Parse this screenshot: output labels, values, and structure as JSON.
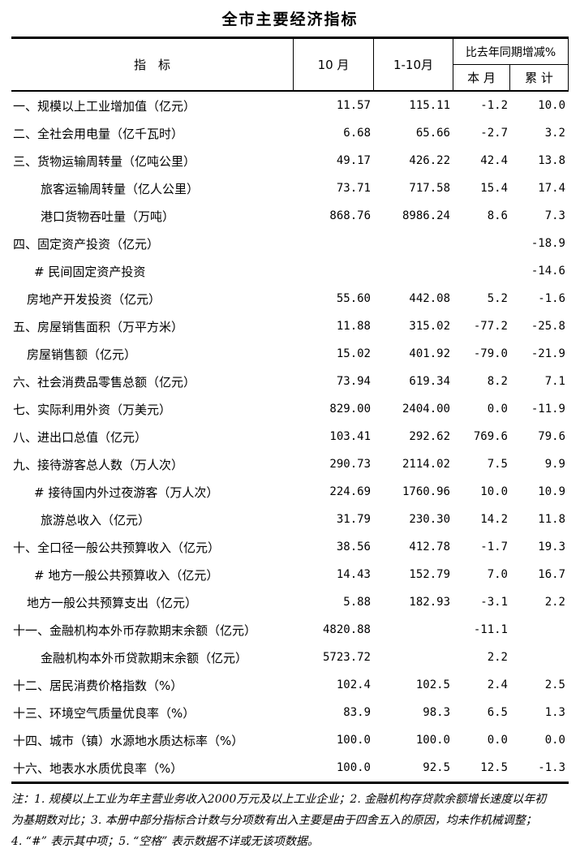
{
  "title": "全市主要经济指标",
  "colors": {
    "background": "#ffffff",
    "text": "#000000",
    "border": "#000000"
  },
  "table": {
    "header": {
      "indicator": "指　标",
      "month": "10 月",
      "cumulative": "1-10月",
      "yoy_group": "比去年同期增减%",
      "yoy_month": "本 月",
      "yoy_cumulative": "累 计"
    },
    "rows": [
      {
        "label": "一、规模以上工业增加值（亿元）",
        "indent": 0,
        "month": "11.57",
        "cum": "115.11",
        "yoy_month": "-1.2",
        "yoy_cum": "10.0"
      },
      {
        "label": "二、全社会用电量（亿千瓦时）",
        "indent": 0,
        "month": "6.68",
        "cum": "65.66",
        "yoy_month": "-2.7",
        "yoy_cum": "3.2"
      },
      {
        "label": "三、货物运输周转量（亿吨公里）",
        "indent": 0,
        "month": "49.17",
        "cum": "426.22",
        "yoy_month": "42.4",
        "yoy_cum": "13.8"
      },
      {
        "label": "旅客运输周转量（亿人公里）",
        "indent": 3,
        "month": "73.71",
        "cum": "717.58",
        "yoy_month": "15.4",
        "yoy_cum": "17.4"
      },
      {
        "label": "港口货物吞吐量（万吨）",
        "indent": 3,
        "month": "868.76",
        "cum": "8986.24",
        "yoy_month": "8.6",
        "yoy_cum": "7.3"
      },
      {
        "label": "四、固定资产投资（亿元）",
        "indent": 0,
        "month": "",
        "cum": "",
        "yoy_month": "",
        "yoy_cum": "-18.9"
      },
      {
        "label": "# 民间固定资产投资",
        "indent": 2,
        "month": "",
        "cum": "",
        "yoy_month": "",
        "yoy_cum": "-14.6"
      },
      {
        "label": "房地产开发投资（亿元）",
        "indent": 1,
        "month": "55.60",
        "cum": "442.08",
        "yoy_month": "5.2",
        "yoy_cum": "-1.6"
      },
      {
        "label": "五、房屋销售面积（万平方米）",
        "indent": 0,
        "month": "11.88",
        "cum": "315.02",
        "yoy_month": "-77.2",
        "yoy_cum": "-25.8"
      },
      {
        "label": "房屋销售额（亿元）",
        "indent": 1,
        "month": "15.02",
        "cum": "401.92",
        "yoy_month": "-79.0",
        "yoy_cum": "-21.9"
      },
      {
        "label": "六、社会消费品零售总额（亿元）",
        "indent": 0,
        "month": "73.94",
        "cum": "619.34",
        "yoy_month": "8.2",
        "yoy_cum": "7.1"
      },
      {
        "label": "七、实际利用外资（万美元）",
        "indent": 0,
        "month": "829.00",
        "cum": "2404.00",
        "yoy_month": "0.0",
        "yoy_cum": "-11.9"
      },
      {
        "label": "八、进出口总值（亿元）",
        "indent": 0,
        "month": "103.41",
        "cum": "292.62",
        "yoy_month": "769.6",
        "yoy_cum": "79.6"
      },
      {
        "label": "九、接待游客总人数（万人次）",
        "indent": 0,
        "month": "290.73",
        "cum": "2114.02",
        "yoy_month": "7.5",
        "yoy_cum": "9.9"
      },
      {
        "label": "# 接待国内外过夜游客（万人次）",
        "indent": 2,
        "month": "224.69",
        "cum": "1760.96",
        "yoy_month": "10.0",
        "yoy_cum": "10.9"
      },
      {
        "label": "旅游总收入（亿元）",
        "indent": 3,
        "month": "31.79",
        "cum": "230.30",
        "yoy_month": "14.2",
        "yoy_cum": "11.8"
      },
      {
        "label": "十、全口径一般公共预算收入（亿元）",
        "indent": 0,
        "month": "38.56",
        "cum": "412.78",
        "yoy_month": "-1.7",
        "yoy_cum": "19.3"
      },
      {
        "label": "# 地方一般公共预算收入（亿元）",
        "indent": 2,
        "month": "14.43",
        "cum": "152.79",
        "yoy_month": "7.0",
        "yoy_cum": "16.7"
      },
      {
        "label": "地方一般公共预算支出（亿元）",
        "indent": 1,
        "month": "5.88",
        "cum": "182.93",
        "yoy_month": "-3.1",
        "yoy_cum": "2.2"
      },
      {
        "label": "十一、金融机构本外币存款期末余额（亿元）",
        "indent": 0,
        "month": "4820.88",
        "cum": "",
        "yoy_month": "-11.1",
        "yoy_cum": ""
      },
      {
        "label": "金融机构本外币贷款期末余额（亿元）",
        "indent": 3,
        "month": "5723.72",
        "cum": "",
        "yoy_month": "2.2",
        "yoy_cum": ""
      },
      {
        "label": "十二、居民消费价格指数（%）",
        "indent": 0,
        "month": "102.4",
        "cum": "102.5",
        "yoy_month": "2.4",
        "yoy_cum": "2.5"
      },
      {
        "label": "十三、环境空气质量优良率（%）",
        "indent": 0,
        "month": "83.9",
        "cum": "98.3",
        "yoy_month": "6.5",
        "yoy_cum": "1.3"
      },
      {
        "label": "十四、城市（镇）水源地水质达标率（%）",
        "indent": 0,
        "month": "100.0",
        "cum": "100.0",
        "yoy_month": "0.0",
        "yoy_cum": "0.0"
      },
      {
        "label": "十六、地表水水质优良率（%）",
        "indent": 0,
        "month": "100.0",
        "cum": "92.5",
        "yoy_month": "12.5",
        "yoy_cum": "-1.3"
      }
    ]
  },
  "notes": {
    "lines": [
      "注：1. 规模以上工业为年主营业务收入2000万元及以上工业企业；2. 金融机构存贷款余额增长速度以年初",
      "为基期数对比；3. 本册中部分指标合计数与分项数有出入主要是由于四舍五入的原因，均未作机械调整；",
      "4. “#” 表示其中项；5. “空格” 表示数据不详或无该项数据。"
    ]
  }
}
